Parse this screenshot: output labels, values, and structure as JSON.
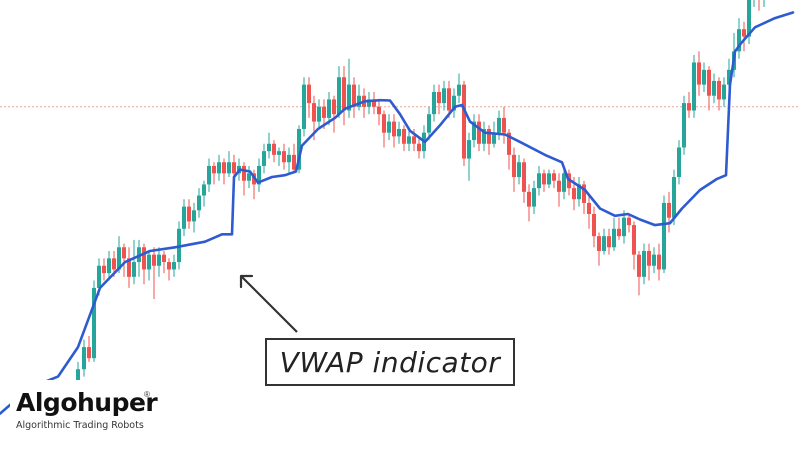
{
  "chart_data": {
    "type": "candlestick",
    "price_range": [
      0,
      100
    ],
    "reference_level": 73,
    "colors": {
      "up": "#26a69a",
      "down": "#ef5350",
      "vwap": "#2f5bd1",
      "reference_line": "#e8a79a",
      "annotation": "#333333"
    },
    "series": [
      {
        "name": "VWAP",
        "type": "line",
        "points": [
          [
            0,
            -10
          ],
          [
            30,
            -3
          ],
          [
            58,
            0
          ],
          [
            78,
            8
          ],
          [
            100,
            24
          ],
          [
            125,
            31
          ],
          [
            150,
            34
          ],
          [
            175,
            35
          ],
          [
            205,
            36.5
          ],
          [
            222,
            38.5
          ],
          [
            232,
            38.5
          ],
          [
            234,
            54
          ],
          [
            240,
            56
          ],
          [
            250,
            55.5
          ],
          [
            258,
            52.5
          ],
          [
            272,
            54
          ],
          [
            285,
            54.5
          ],
          [
            296,
            55.5
          ],
          [
            302,
            62.5
          ],
          [
            318,
            67
          ],
          [
            335,
            70
          ],
          [
            345,
            72.5
          ],
          [
            365,
            74.5
          ],
          [
            380,
            74.8
          ],
          [
            390,
            74.7
          ],
          [
            400,
            71
          ],
          [
            410,
            66.5
          ],
          [
            425,
            63.5
          ],
          [
            440,
            68
          ],
          [
            455,
            73
          ],
          [
            462,
            73.5
          ],
          [
            470,
            69
          ],
          [
            485,
            66
          ],
          [
            505,
            65.5
          ],
          [
            520,
            63.5
          ],
          [
            545,
            60
          ],
          [
            562,
            58
          ],
          [
            568,
            53.5
          ],
          [
            585,
            50.5
          ],
          [
            600,
            45.5
          ],
          [
            615,
            43.5
          ],
          [
            628,
            44
          ],
          [
            640,
            42.5
          ],
          [
            655,
            41
          ],
          [
            670,
            41.5
          ],
          [
            682,
            45.5
          ],
          [
            700,
            50.5
          ],
          [
            717,
            53.5
          ],
          [
            726,
            54.5
          ],
          [
            730,
            79
          ],
          [
            735,
            88
          ],
          [
            742,
            90.5
          ],
          [
            755,
            94.5
          ],
          [
            775,
            97
          ],
          [
            793,
            98.5
          ]
        ]
      }
    ],
    "candles": [
      [
        63,
        -12,
        -7,
        -14,
        -5
      ],
      [
        68,
        -7,
        -5,
        -9,
        -2
      ],
      [
        73,
        -5,
        -9,
        -11,
        -3
      ],
      [
        78,
        -8,
        2,
        -9,
        4
      ],
      [
        84,
        2,
        8,
        0,
        10
      ],
      [
        89,
        8,
        5,
        4,
        11
      ],
      [
        94,
        5,
        24,
        4,
        26
      ],
      [
        99,
        24,
        30,
        22,
        32
      ],
      [
        104,
        30,
        28,
        26,
        32
      ],
      [
        109,
        28,
        32,
        26,
        34
      ],
      [
        114,
        32,
        29,
        27,
        34
      ],
      [
        119,
        29,
        35,
        28,
        38
      ],
      [
        124,
        35,
        32,
        27,
        36
      ],
      [
        129,
        32,
        27,
        24,
        35
      ],
      [
        134,
        27,
        31,
        25,
        37
      ],
      [
        139,
        31,
        35,
        27,
        37
      ],
      [
        144,
        35,
        29,
        25,
        36
      ],
      [
        149,
        29,
        33,
        26,
        34
      ],
      [
        154,
        33,
        30,
        21,
        35
      ],
      [
        159,
        30,
        33,
        27,
        35
      ],
      [
        164,
        33,
        31,
        28,
        34
      ],
      [
        169,
        31,
        29,
        26,
        32
      ],
      [
        174,
        29,
        31,
        27,
        33
      ],
      [
        179,
        31,
        40,
        29,
        42
      ],
      [
        184,
        40,
        46,
        38,
        48
      ],
      [
        189,
        46,
        42,
        40,
        48
      ],
      [
        194,
        42,
        45,
        39,
        47
      ],
      [
        199,
        45,
        49,
        43,
        51
      ],
      [
        204,
        49,
        52,
        46,
        53
      ],
      [
        209,
        52,
        57,
        50,
        59
      ],
      [
        214,
        57,
        55,
        52,
        58
      ],
      [
        219,
        55,
        58,
        53,
        60
      ],
      [
        224,
        58,
        55,
        52,
        59
      ],
      [
        229,
        55,
        58,
        54,
        61
      ],
      [
        234,
        58,
        55,
        53,
        60
      ],
      [
        239,
        55,
        57,
        53,
        59
      ],
      [
        244,
        57,
        53,
        49,
        58
      ],
      [
        249,
        53,
        55,
        51,
        57
      ],
      [
        254,
        55,
        52,
        48,
        56
      ],
      [
        259,
        52,
        57,
        50,
        59
      ],
      [
        264,
        57,
        61,
        55,
        63
      ],
      [
        269,
        61,
        63,
        59,
        66
      ],
      [
        274,
        63,
        60,
        58,
        64
      ],
      [
        279,
        60,
        61,
        57,
        62
      ],
      [
        284,
        61,
        58,
        56,
        63
      ],
      [
        289,
        58,
        60,
        55,
        62
      ],
      [
        294,
        60,
        56,
        55,
        63
      ],
      [
        299,
        56,
        67,
        55,
        68
      ],
      [
        304,
        67,
        79,
        65,
        81
      ],
      [
        309,
        79,
        74,
        70,
        81
      ],
      [
        314,
        74,
        69,
        64,
        76
      ],
      [
        319,
        69,
        73,
        67,
        75
      ],
      [
        324,
        73,
        70,
        67,
        75
      ],
      [
        329,
        70,
        75,
        68,
        77
      ],
      [
        334,
        75,
        71,
        66,
        76
      ],
      [
        339,
        71,
        81,
        70,
        84
      ],
      [
        344,
        81,
        72,
        68,
        84
      ],
      [
        349,
        72,
        79,
        70,
        86
      ],
      [
        354,
        79,
        73,
        70,
        81
      ],
      [
        359,
        73,
        76,
        72,
        79
      ],
      [
        364,
        76,
        73,
        70,
        78
      ],
      [
        369,
        73,
        75,
        71,
        77
      ],
      [
        374,
        75,
        73,
        71,
        77
      ],
      [
        379,
        73,
        71,
        68,
        75
      ],
      [
        384,
        71,
        66,
        62,
        72
      ],
      [
        389,
        66,
        69,
        64,
        71
      ],
      [
        394,
        69,
        65,
        62,
        71
      ],
      [
        399,
        65,
        67,
        63,
        69
      ],
      [
        404,
        67,
        63,
        61,
        68
      ],
      [
        409,
        63,
        65,
        61,
        67
      ],
      [
        414,
        65,
        63,
        61,
        67
      ],
      [
        419,
        63,
        61,
        59,
        65
      ],
      [
        424,
        61,
        66,
        59,
        68
      ],
      [
        429,
        66,
        71,
        64,
        73
      ],
      [
        434,
        71,
        77,
        69,
        79
      ],
      [
        439,
        77,
        74,
        71,
        79
      ],
      [
        444,
        74,
        78,
        72,
        80
      ],
      [
        449,
        78,
        72,
        70,
        80
      ],
      [
        454,
        72,
        76,
        70,
        78
      ],
      [
        459,
        76,
        79,
        74,
        82
      ],
      [
        464,
        79,
        59,
        57,
        80
      ],
      [
        469,
        59,
        64,
        53,
        66
      ],
      [
        474,
        64,
        69,
        62,
        71
      ],
      [
        479,
        69,
        63,
        61,
        71
      ],
      [
        484,
        63,
        67,
        61,
        69
      ],
      [
        489,
        67,
        63,
        60,
        68
      ],
      [
        494,
        63,
        66,
        62,
        69
      ],
      [
        499,
        66,
        70,
        64,
        72
      ],
      [
        504,
        70,
        66,
        63,
        73
      ],
      [
        509,
        66,
        60,
        56,
        67
      ],
      [
        514,
        60,
        54,
        50,
        62
      ],
      [
        519,
        54,
        58,
        52,
        60
      ],
      [
        524,
        58,
        50,
        47,
        59
      ],
      [
        529,
        50,
        46,
        42,
        52
      ],
      [
        534,
        46,
        51,
        44,
        53
      ],
      [
        539,
        51,
        55,
        49,
        57
      ],
      [
        544,
        55,
        52,
        50,
        56
      ],
      [
        549,
        52,
        55,
        51,
        56
      ],
      [
        554,
        55,
        53,
        51,
        56
      ],
      [
        559,
        53,
        50,
        46,
        55
      ],
      [
        564,
        50,
        55,
        48,
        57
      ],
      [
        569,
        55,
        51,
        49,
        56
      ],
      [
        574,
        51,
        48,
        45,
        54
      ],
      [
        579,
        48,
        52,
        46,
        54
      ],
      [
        584,
        52,
        47,
        44,
        53
      ],
      [
        589,
        47,
        44,
        40,
        49
      ],
      [
        594,
        44,
        38,
        35,
        46
      ],
      [
        599,
        38,
        34,
        30,
        39
      ],
      [
        604,
        34,
        38,
        33,
        40
      ],
      [
        609,
        38,
        35,
        33,
        40
      ],
      [
        614,
        35,
        40,
        34,
        43
      ],
      [
        619,
        40,
        38,
        37,
        43
      ],
      [
        624,
        38,
        43,
        36,
        45
      ],
      [
        629,
        43,
        41,
        39,
        44
      ],
      [
        634,
        41,
        33,
        29,
        42
      ],
      [
        639,
        33,
        27,
        22,
        34
      ],
      [
        644,
        27,
        34,
        25,
        36
      ],
      [
        649,
        34,
        30,
        26,
        36
      ],
      [
        654,
        30,
        33,
        28,
        35
      ],
      [
        659,
        33,
        29,
        26,
        36
      ],
      [
        664,
        29,
        47,
        28,
        49
      ],
      [
        669,
        47,
        43,
        39,
        50
      ],
      [
        674,
        43,
        54,
        41,
        56
      ],
      [
        679,
        54,
        62,
        52,
        64
      ],
      [
        684,
        62,
        74,
        60,
        76
      ],
      [
        689,
        74,
        72,
        70,
        77
      ],
      [
        694,
        72,
        85,
        70,
        87
      ],
      [
        699,
        85,
        79,
        76,
        88
      ],
      [
        704,
        79,
        83,
        77,
        85
      ],
      [
        709,
        83,
        76,
        72,
        84
      ],
      [
        714,
        76,
        80,
        74,
        82
      ],
      [
        719,
        80,
        75,
        72,
        81
      ],
      [
        724,
        75,
        79,
        73,
        81
      ],
      [
        729,
        79,
        83,
        77,
        86
      ],
      [
        734,
        83,
        88,
        81,
        93
      ],
      [
        739,
        88,
        94,
        86,
        97
      ],
      [
        744,
        94,
        92,
        88,
        96
      ],
      [
        749,
        92,
        103,
        90,
        108
      ],
      [
        754,
        103,
        105,
        100,
        111
      ],
      [
        759,
        105,
        102,
        99,
        108
      ],
      [
        764,
        102,
        107,
        100,
        111
      ],
      [
        769,
        107,
        110,
        105,
        112
      ]
    ]
  },
  "annotation": {
    "label": "VWAP indicator"
  },
  "branding": {
    "name": "Algohuper",
    "registered_mark": "®",
    "tagline": "Algorithmic Trading Robots"
  }
}
